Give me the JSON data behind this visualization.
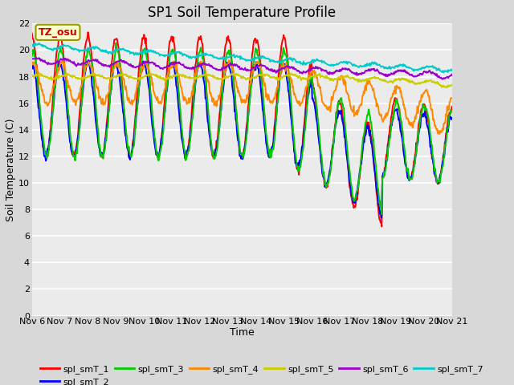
{
  "title": "SP1 Soil Temperature Profile",
  "xlabel": "Time",
  "ylabel": "Soil Temperature (C)",
  "ylim": [
    0,
    22
  ],
  "yticks": [
    0,
    2,
    4,
    6,
    8,
    10,
    12,
    14,
    16,
    18,
    20,
    22
  ],
  "xtick_labels": [
    "Nov 6",
    "Nov 7",
    "Nov 8",
    "Nov 9",
    "Nov 10",
    "Nov 11",
    "Nov 12",
    "Nov 13",
    "Nov 14",
    "Nov 15",
    "Nov 16",
    "Nov 17",
    "Nov 18",
    "Nov 19",
    "Nov 20",
    "Nov 21"
  ],
  "series_colors": {
    "spl_smT_1": "#ff0000",
    "spl_smT_2": "#0000ff",
    "spl_smT_3": "#00cc00",
    "spl_smT_4": "#ff8800",
    "spl_smT_5": "#cccc00",
    "spl_smT_6": "#9900cc",
    "spl_smT_7": "#00cccc"
  },
  "bg_color": "#d8d8d8",
  "plot_bg_color": "#ebebeb",
  "grid_color": "#ffffff",
  "annotation_text": "TZ_osu",
  "annotation_color": "#cc0000",
  "annotation_bg": "#ffffcc",
  "annotation_border": "#999900",
  "title_fontsize": 12,
  "axis_label_fontsize": 9,
  "tick_fontsize": 8,
  "legend_fontsize": 8,
  "linewidth": 1.4
}
